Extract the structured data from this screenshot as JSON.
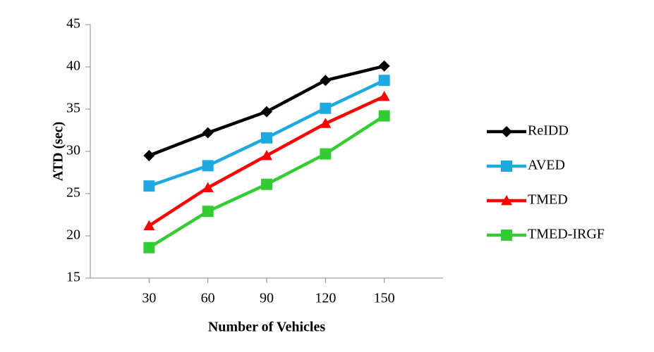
{
  "chart_data": {
    "type": "line",
    "x_label": "Number of Vehicles",
    "y_label": "ATD (sec)",
    "x": [
      30,
      60,
      90,
      120,
      150
    ],
    "xlim": [
      0,
      180
    ],
    "xticks": [
      30,
      60,
      90,
      120,
      150
    ],
    "ylim": [
      15,
      45
    ],
    "yticks": [
      15,
      20,
      25,
      30,
      35,
      40,
      45
    ],
    "grid": false,
    "legend": "right",
    "series": [
      {
        "name": "ReIDD",
        "color": "#000000",
        "marker": "diamond",
        "values": [
          29.5,
          32.2,
          34.7,
          38.4,
          40.1
        ]
      },
      {
        "name": "AVED",
        "color": "#1fa9e1",
        "marker": "square",
        "values": [
          25.9,
          28.3,
          31.6,
          35.1,
          38.4
        ]
      },
      {
        "name": "TMED",
        "color": "#ff0000",
        "marker": "triangle",
        "values": [
          21.2,
          25.7,
          29.5,
          33.3,
          36.5
        ]
      },
      {
        "name": "TMED-IRGF",
        "color": "#33cc33",
        "marker": "square",
        "values": [
          18.6,
          22.9,
          26.1,
          29.7,
          34.2
        ]
      }
    ]
  }
}
